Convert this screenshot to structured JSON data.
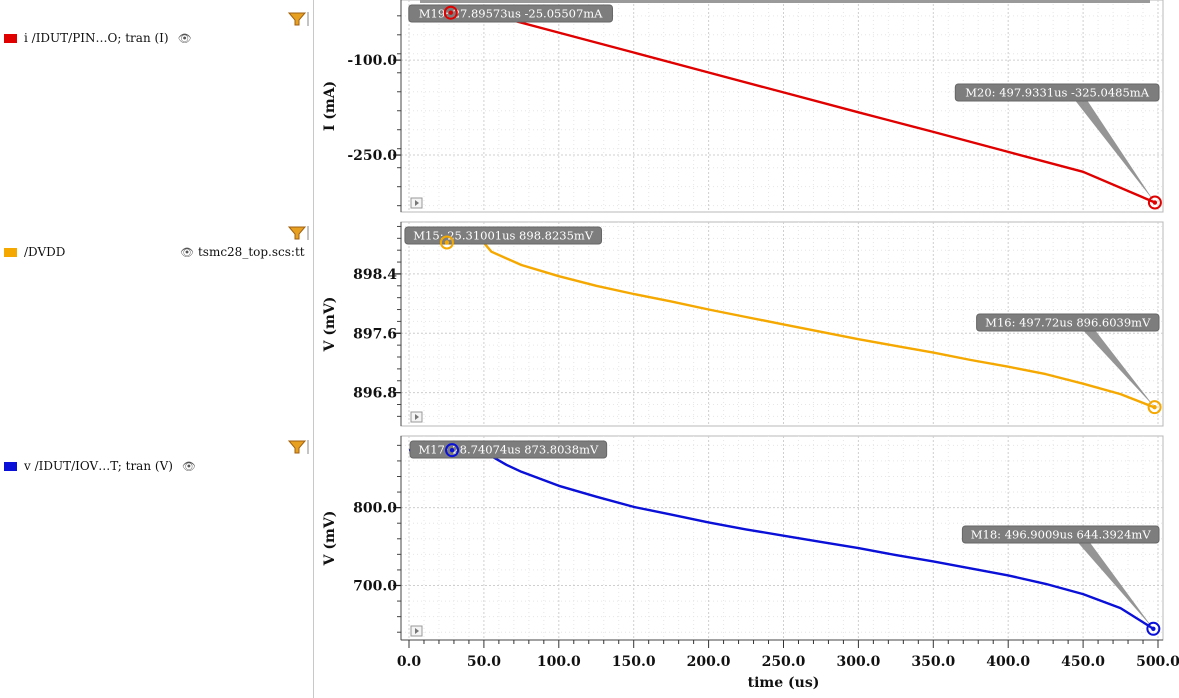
{
  "legend": [
    {
      "label": "i /IDUT/PIN…O; tran (I)",
      "color": "#e00000",
      "source": ""
    },
    {
      "label": "/DVDD",
      "color": "#f5a800",
      "source": "tsmc28_top.scs:tt"
    },
    {
      "label": "v /IDUT/IOV…T; tran (V)",
      "color": "#0a10d8",
      "source": ""
    }
  ],
  "chart_data": [
    {
      "type": "line",
      "ylabel": "I (mA)",
      "yticks": [
        -100.0,
        -250.0
      ],
      "ytick_labels": [
        "-100.0",
        "-250.0"
      ],
      "ylim": [
        -340,
        -5
      ],
      "xlim": [
        0,
        500
      ],
      "color": "#e00000",
      "series": [
        {
          "name": "i /IDUT/PIN…O; tran (I)",
          "points": [
            [
              0,
              -25.05
            ],
            [
              50,
              -25.05
            ],
            [
              100,
              -56.5
            ],
            [
              150,
              -88
            ],
            [
              200,
              -119.5
            ],
            [
              250,
              -151
            ],
            [
              300,
              -182.5
            ],
            [
              350,
              -213.5
            ],
            [
              400,
              -245
            ],
            [
              450,
              -276.5
            ],
            [
              497.93,
              -325.05
            ]
          ]
        }
      ],
      "markers": [
        {
          "label": "M19: 27.89573us -25.05507mA",
          "x": 27.89573,
          "y": -25.05507
        },
        {
          "label": "M20: 497.9331us -325.0485mA",
          "x": 497.9331,
          "y": -325.0485
        }
      ]
    },
    {
      "type": "line",
      "ylabel": "V (mV)",
      "yticks": [
        898.4,
        897.6,
        896.8
      ],
      "ytick_labels": [
        "898.4",
        "897.6",
        "896.8"
      ],
      "ylim": [
        896.35,
        899.1
      ],
      "xlim": [
        0,
        500
      ],
      "color": "#f5a800",
      "series": [
        {
          "name": "/DVDD",
          "points": [
            [
              0,
              898.82
            ],
            [
              50,
              898.82
            ],
            [
              55,
              898.7
            ],
            [
              75,
              898.52
            ],
            [
              100,
              898.37
            ],
            [
              125,
              898.24
            ],
            [
              150,
              898.13
            ],
            [
              175,
              898.03
            ],
            [
              200,
              897.92
            ],
            [
              225,
              897.82
            ],
            [
              250,
              897.72
            ],
            [
              275,
              897.62
            ],
            [
              300,
              897.52
            ],
            [
              325,
              897.43
            ],
            [
              350,
              897.34
            ],
            [
              375,
              897.24
            ],
            [
              400,
              897.15
            ],
            [
              425,
              897.05
            ],
            [
              450,
              896.92
            ],
            [
              475,
              896.78
            ],
            [
              497.72,
              896.6
            ]
          ]
        }
      ],
      "markers": [
        {
          "label": "M15: 25.31001us 898.8235mV",
          "x": 25.31001,
          "y": 898.8235
        },
        {
          "label": "M16: 497.72us 896.6039mV",
          "x": 497.72,
          "y": 896.6039
        }
      ]
    },
    {
      "type": "line",
      "ylabel": "V (mV)",
      "yticks": [
        800.0,
        700.0
      ],
      "ytick_labels": [
        "800.0",
        "700.0"
      ],
      "ylim": [
        630,
        892
      ],
      "xlim": [
        0,
        500
      ],
      "xticks": [
        0,
        50,
        100,
        150,
        200,
        250,
        300,
        350,
        400,
        450,
        500
      ],
      "xtick_labels": [
        "0.0",
        "50.0",
        "100.0",
        "150.0",
        "200.0",
        "250.0",
        "300.0",
        "350.0",
        "400.0",
        "450.0",
        "500.0"
      ],
      "xlabel": "time (us)",
      "color": "#0a10d8",
      "series": [
        {
          "name": "v /IDUT/IOV…T; tran (V)",
          "points": [
            [
              0,
              873.8
            ],
            [
              50,
              873.8
            ],
            [
              55,
              866
            ],
            [
              65,
              855
            ],
            [
              75,
              846
            ],
            [
              100,
              828
            ],
            [
              125,
              814
            ],
            [
              150,
              801
            ],
            [
              175,
              791
            ],
            [
              200,
              781
            ],
            [
              225,
              772
            ],
            [
              250,
              764
            ],
            [
              275,
              756
            ],
            [
              300,
              748
            ],
            [
              325,
              739
            ],
            [
              350,
              731
            ],
            [
              375,
              722
            ],
            [
              400,
              713
            ],
            [
              425,
              702
            ],
            [
              450,
              689
            ],
            [
              475,
              671
            ],
            [
              496.9,
              644.39
            ]
          ]
        }
      ],
      "markers": [
        {
          "label": "M17: 28.74074us 873.8038mV",
          "x": 28.74074,
          "y": 873.8038
        },
        {
          "label": "M18: 496.9009us 644.3924mV",
          "x": 496.9009,
          "y": 644.3924
        }
      ]
    }
  ]
}
